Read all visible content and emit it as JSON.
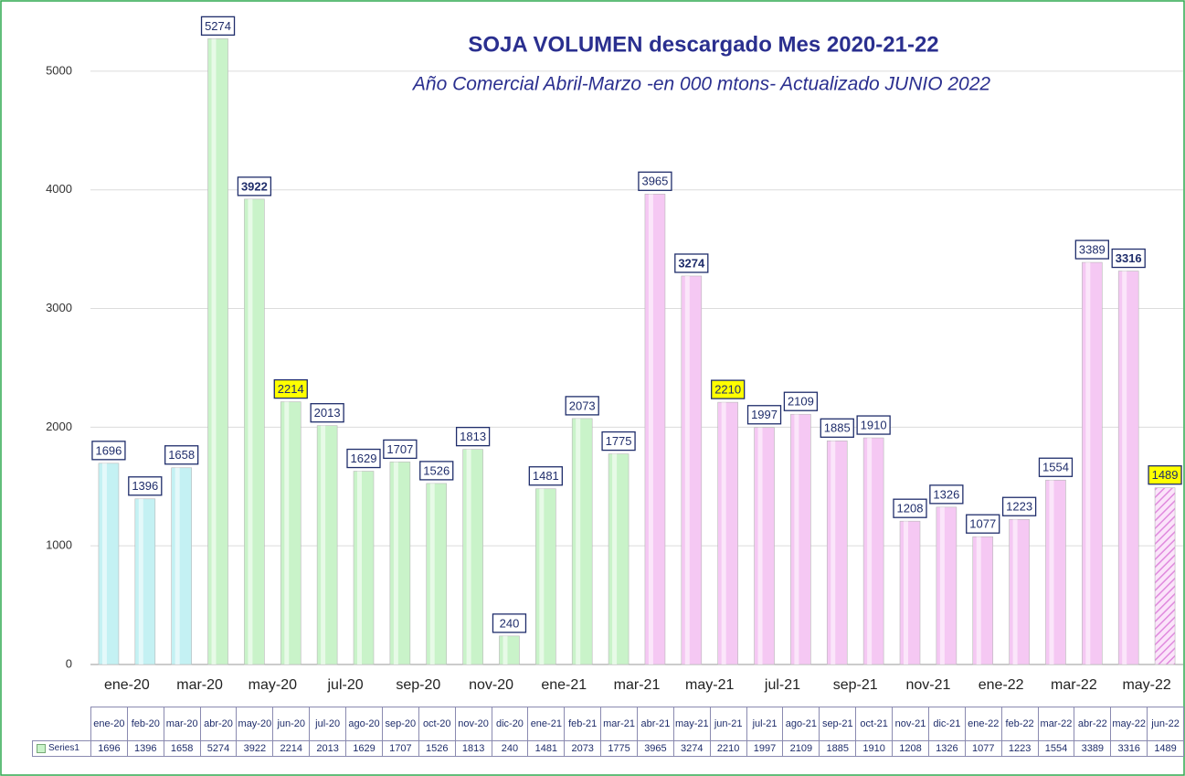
{
  "chart_data": {
    "type": "bar",
    "title": "SOJA VOLUMEN   descargado Mes 2020-21-22",
    "subtitle": "Año Comercial Abril-Marzo -en 000 mtons- Actualizado JUNIO    2022",
    "categories": [
      "ene-20",
      "feb-20",
      "mar-20",
      "abr-20",
      "may-20",
      "jun-20",
      "jul-20",
      "ago-20",
      "sep-20",
      "oct-20",
      "nov-20",
      "dic-20",
      "ene-21",
      "feb-21",
      "mar-21",
      "abr-21",
      "may-21",
      "jun-21",
      "jul-21",
      "ago-21",
      "sep-21",
      "oct-21",
      "nov-21",
      "dic-21",
      "ene-22",
      "feb-22",
      "mar-22",
      "abr-22",
      "may-22",
      "jun-22"
    ],
    "series": [
      {
        "name": "Series1",
        "values": [
          1696,
          1396,
          1658,
          5274,
          3922,
          2214,
          2013,
          1629,
          1707,
          1526,
          1813,
          240,
          1481,
          2073,
          1775,
          3965,
          3274,
          2210,
          1997,
          2109,
          1885,
          1910,
          1208,
          1326,
          1077,
          1223,
          1554,
          3389,
          3316,
          1489
        ],
        "colors": [
          "#c4f1f3",
          "#c4f1f3",
          "#c4f1f3",
          "#c9f3c9",
          "#c9f3c9",
          "#c9f3c9",
          "#c9f3c9",
          "#c9f3c9",
          "#c9f3c9",
          "#c9f3c9",
          "#c9f3c9",
          "#c9f3c9",
          "#c9f3c9",
          "#c9f3c9",
          "#c9f3c9",
          "#f5c8f3",
          "#f5c8f3",
          "#f5c8f3",
          "#f5c8f3",
          "#f5c8f3",
          "#f5c8f3",
          "#f5c8f3",
          "#f5c8f3",
          "#f5c8f3",
          "#f5c8f3",
          "#f5c8f3",
          "#f5c8f3",
          "#f5c8f3",
          "#f5c8f3",
          "#f5c8f3"
        ]
      }
    ],
    "highlighted_labels": [
      5,
      17,
      29
    ],
    "highlight_color": "#ffff00",
    "bold_labels": [
      4,
      16,
      28
    ],
    "hatched_bars": [
      29
    ],
    "ylim": [
      0,
      5400
    ],
    "yticks": [
      0,
      1000,
      2000,
      3000,
      4000,
      5000
    ],
    "grid": true,
    "data_table": true
  }
}
